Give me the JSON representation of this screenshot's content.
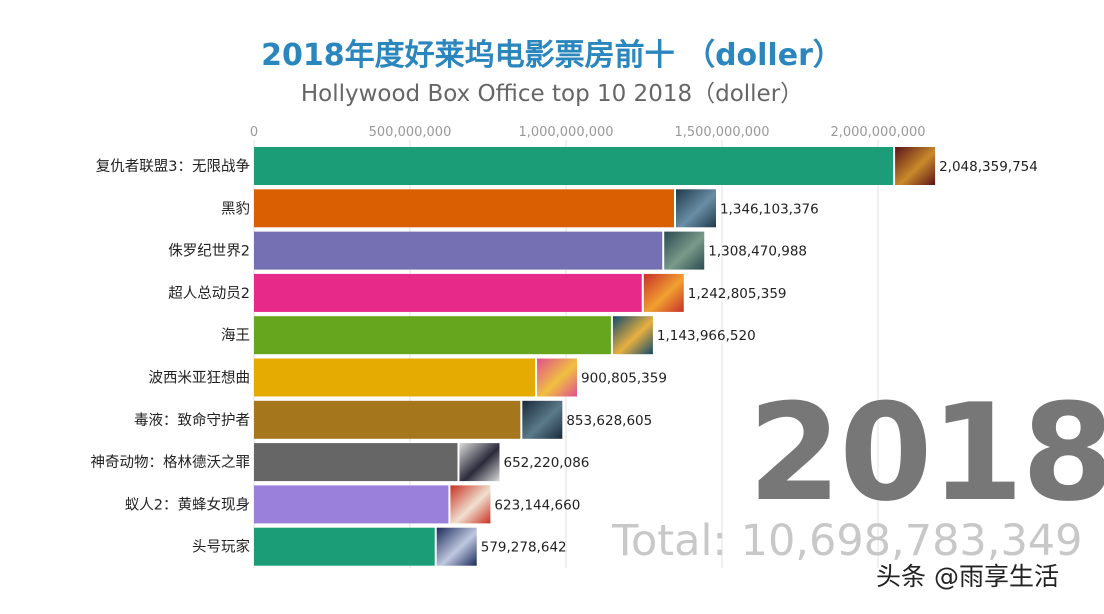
{
  "title": "2018年度好莱坞电影票房前十 （doller）",
  "subtitle": "Hollywood Box Office top 10 2018（doller）",
  "year": "2018",
  "total": "Total: 10,698,783,349",
  "watermark": "头条 @雨享生活",
  "chart_data": {
    "type": "bar",
    "orientation": "horizontal",
    "xlim": [
      0,
      2000000000
    ],
    "x_ticks": [
      "0",
      "500,000,000",
      "1,000,000,000",
      "1,500,000,000",
      "2,000,000,000"
    ],
    "x_tick_values": [
      0,
      500000000,
      1000000000,
      1500000000,
      2000000000
    ],
    "grid": true,
    "categories": [
      "复仇者联盟3：无限战争",
      "黑豹",
      "侏罗纪世界2",
      "超人总动员2",
      "海王",
      "波西米亚狂想曲",
      "毒液：致命守护者",
      "神奇动物：格林德沃之罪",
      "蚁人2：黄蜂女现身",
      "头号玩家"
    ],
    "values": [
      2048359754,
      1346103376,
      1308470988,
      1242805359,
      1143966520,
      900805359,
      853628605,
      652220086,
      623144660,
      579278642
    ],
    "value_labels": [
      "2,048,359,754",
      "1,346,103,376",
      "1,308,470,988",
      "1,242,805,359",
      "1,143,966,520",
      "900,805,359",
      "853,628,605",
      "652,220,086",
      "623,144,660",
      "579,278,642"
    ],
    "colors": [
      "#1b9e77",
      "#d95f02",
      "#7570b3",
      "#e7298a",
      "#66a61e",
      "#e6ab02",
      "#a6761d",
      "#666666",
      "#9a7fdb",
      "#1b9e77"
    ],
    "poster_colors": [
      [
        "#5a1418",
        "#c98a2a"
      ],
      [
        "#1e3a4a",
        "#6a8ea6"
      ],
      [
        "#2a4a50",
        "#7a9a8a"
      ],
      [
        "#c8302a",
        "#f0a030"
      ],
      [
        "#124a6a",
        "#e8b040"
      ],
      [
        "#e05090",
        "#f0c040"
      ],
      [
        "#1a2a3a",
        "#5a7a8a"
      ],
      [
        "#dadada",
        "#2a2a3a"
      ],
      [
        "#c83020",
        "#f0e0d0"
      ],
      [
        "#1a2a5a",
        "#c0c8e0"
      ]
    ]
  }
}
